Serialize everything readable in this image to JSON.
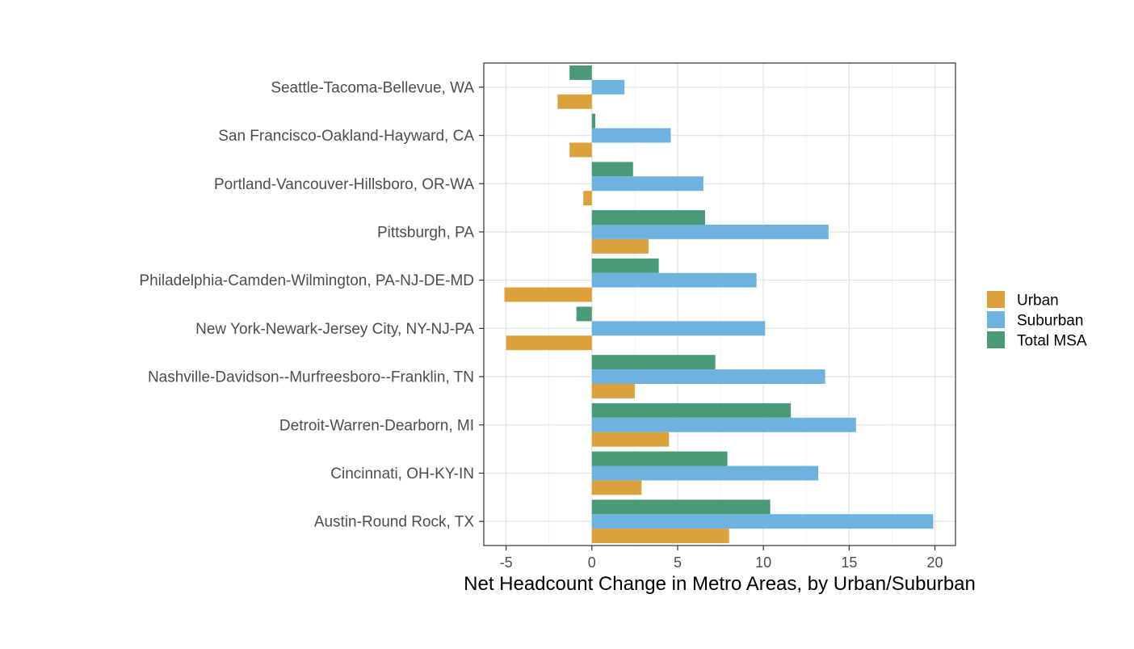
{
  "chart_data": {
    "type": "bar",
    "orientation": "horizontal",
    "categories": [
      "Seattle-Tacoma-Bellevue, WA",
      "San Francisco-Oakland-Hayward, CA",
      "Portland-Vancouver-Hillsboro, OR-WA",
      "Pittsburgh, PA",
      "Philadelphia-Camden-Wilmington, PA-NJ-DE-MD",
      "New York-Newark-Jersey City, NY-NJ-PA",
      "Nashville-Davidson--Murfreesboro--Franklin, TN",
      "Detroit-Warren-Dearborn, MI",
      "Cincinnati, OH-KY-IN",
      "Austin-Round Rock, TX"
    ],
    "series": [
      {
        "name": "Total MSA",
        "color": "#4a9a78",
        "values": [
          -1.3,
          0.2,
          2.4,
          6.6,
          3.9,
          -0.9,
          7.2,
          11.6,
          7.9,
          10.4
        ]
      },
      {
        "name": "Suburban",
        "color": "#6eb2e0",
        "values": [
          1.9,
          4.6,
          6.5,
          13.8,
          9.6,
          10.1,
          13.6,
          15.4,
          13.2,
          19.9
        ]
      },
      {
        "name": "Urban",
        "color": "#dda13c",
        "values": [
          -2.0,
          -1.3,
          -0.5,
          3.3,
          -5.1,
          -5.0,
          2.5,
          4.5,
          2.9,
          8.0
        ]
      }
    ],
    "legend_order": [
      "Urban",
      "Suburban",
      "Total MSA"
    ],
    "xlim": [
      -6.3,
      21.2
    ],
    "xticks": [
      -5,
      0,
      5,
      10,
      15,
      20
    ],
    "xtick_labels": [
      "-5",
      "0",
      "5",
      "10",
      "15",
      "20"
    ],
    "xlabel": "Net Headcount Change in Metro Areas, by Urban/Suburban",
    "ylabel": "",
    "title": "",
    "grid": true,
    "legend_position": "right"
  }
}
